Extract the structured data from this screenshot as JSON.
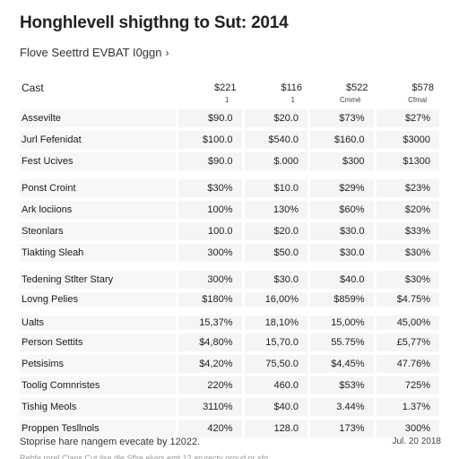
{
  "document": {
    "title": "Honghlevell shigthng to Sut: 2014",
    "subtitle": "Flove Seettrd EVBAT I0ggn",
    "subtitle_chevron": "›"
  },
  "table": {
    "header_label": "Cast",
    "columns": [
      {
        "label": "$221",
        "sub": "1"
      },
      {
        "label": "$116",
        "sub": "1"
      },
      {
        "label": "$522",
        "sub": "Cmmé"
      },
      {
        "label": "$578",
        "sub": "Cfmal"
      }
    ],
    "rows": [
      {
        "label": "Assevilte",
        "values": [
          "$90.0",
          "$20.0",
          "$73%",
          "$27%"
        ]
      },
      {
        "label": "Jurl Fefenidat",
        "values": [
          "$100.0",
          "$540.0",
          "$160.0",
          "$3000"
        ]
      },
      {
        "label": "Fest Ucives",
        "values": [
          "$90.0",
          "$.000",
          "$300",
          "$1300"
        ]
      },
      {
        "label": "Ponst Croint",
        "values": [
          "$30%",
          "$10.0",
          "$29%",
          "$23%"
        ]
      },
      {
        "label": "Ark lociions",
        "values": [
          "100%",
          "130%",
          "$60%",
          "$20%"
        ]
      },
      {
        "label": "Steonlars",
        "values": [
          "100.0",
          "$20.0",
          "$30.0",
          "$33%"
        ]
      },
      {
        "label": "Tiakting Sleah",
        "values": [
          "300%",
          "$50.0",
          "$30.0",
          "$30%"
        ]
      },
      {
        "label": "Tedening Stlter Stary",
        "values": [
          "300%",
          "$30.0",
          "$40.0",
          "$30%"
        ]
      },
      {
        "label": "Lovng Pelies",
        "values": [
          "$180%",
          "16,00%",
          "$859%",
          "$4.75%"
        ]
      },
      {
        "label": "Ualts",
        "values": [
          "15,37%",
          "18,10%",
          "15,00%",
          "45,00%"
        ]
      },
      {
        "label": "Person Settits",
        "values": [
          "$4,80%",
          "15,70.0",
          "55.75%",
          "£5,77%"
        ]
      },
      {
        "label": "Petsisims",
        "values": [
          "$4,20%",
          "75,50.0",
          "$4,45%",
          "47.76%"
        ]
      },
      {
        "label": "Toolig Comnristes",
        "values": [
          "220%",
          "460.0",
          "$53%",
          "725%"
        ]
      },
      {
        "label": "Tishig Meols",
        "values": [
          "3110%",
          "$40.0",
          "3.44%",
          "1.37%"
        ]
      },
      {
        "label": "Proppen Tesllnols",
        "values": [
          "420%",
          "128.0",
          "173%",
          "300%"
        ]
      }
    ]
  },
  "footer": {
    "note": "Stoprise hare nangem evecate by 12022.",
    "date": "Jul. 20 2018",
    "cutoff_text": "Rebfe rorel Clans Cut ilse dle Sflre elvirs emt 12 arurecty oroud pr sfo"
  }
}
